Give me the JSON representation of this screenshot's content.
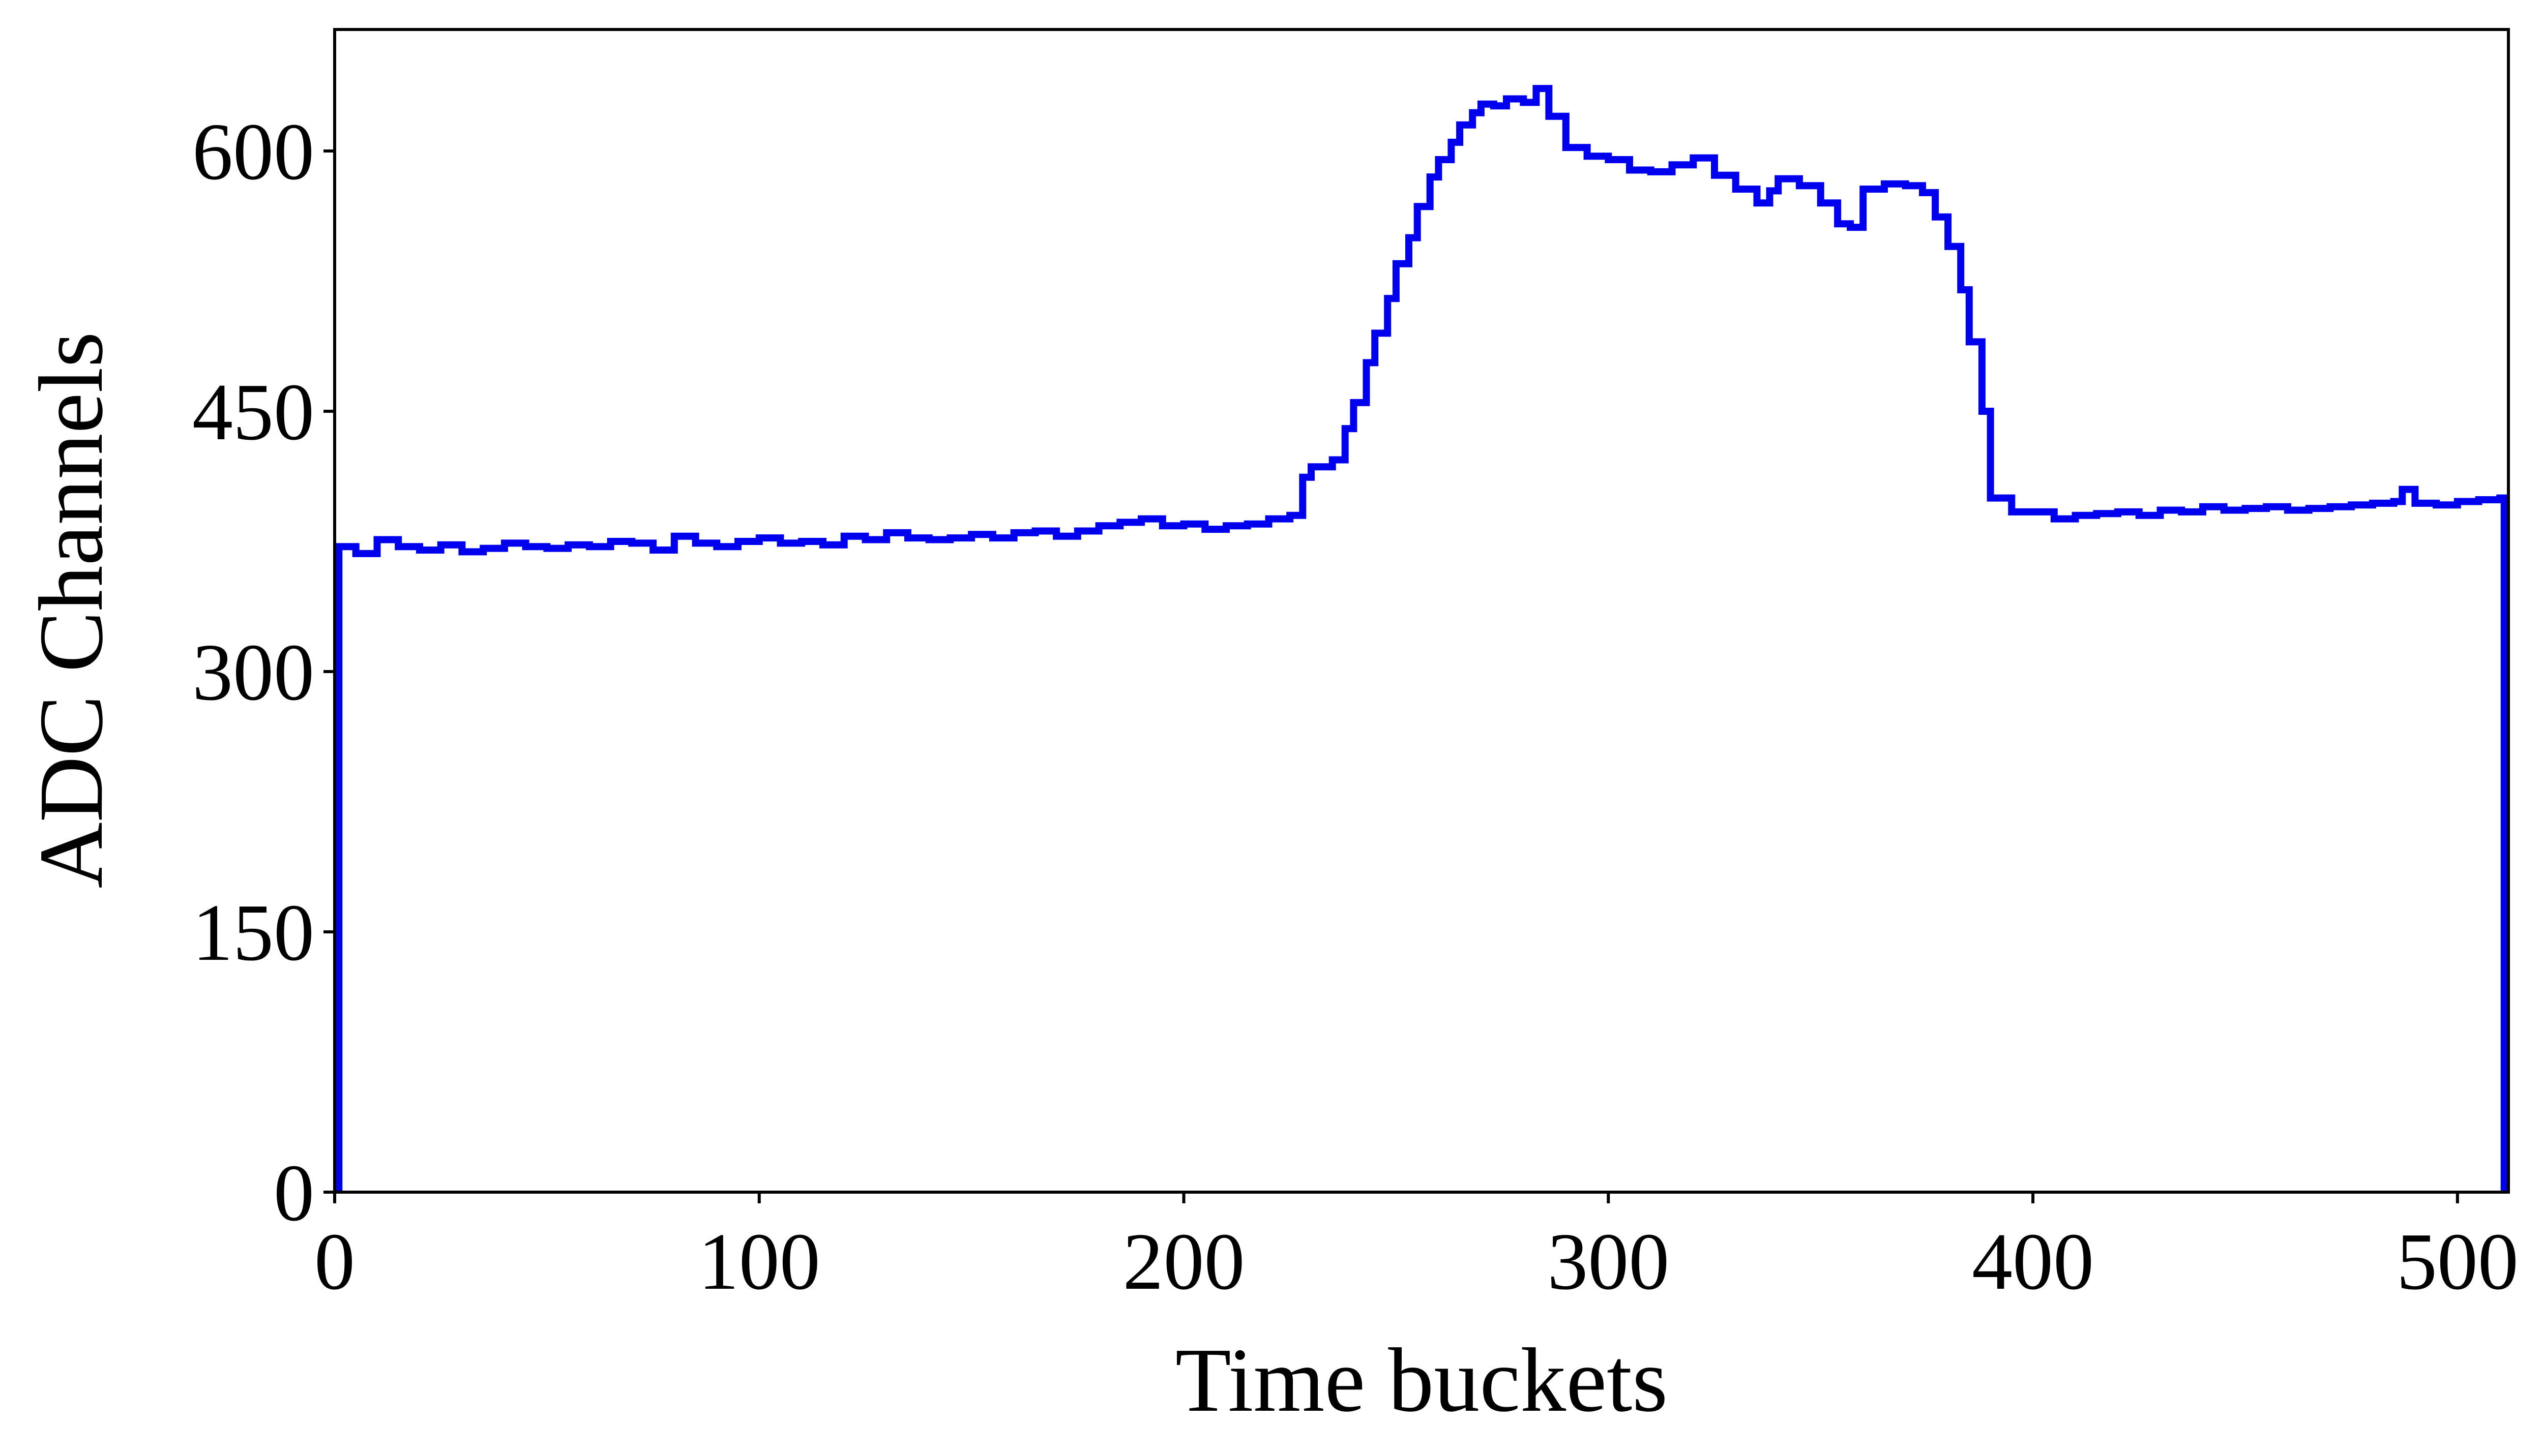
{
  "chart_data": {
    "type": "line",
    "step": true,
    "xlabel": "Time buckets",
    "ylabel": "ADC Channels",
    "xlim": [
      0,
      512
    ],
    "ylim": [
      0,
      670
    ],
    "xticks": [
      0,
      100,
      200,
      300,
      400,
      500
    ],
    "yticks": [
      0,
      150,
      300,
      450,
      600
    ],
    "grid": false,
    "line_color": "#0000ee",
    "series": [
      {
        "x": [
          0,
          1,
          5,
          10,
          15,
          20,
          25,
          30,
          35,
          40,
          45,
          50,
          55,
          60,
          65,
          70,
          75,
          80,
          85,
          90,
          95,
          100,
          105,
          110,
          115,
          120,
          125,
          130,
          135,
          140,
          145,
          150,
          155,
          160,
          165,
          170,
          175,
          180,
          185,
          190,
          195,
          200,
          205,
          210,
          215,
          220,
          225,
          228,
          230,
          235,
          238,
          240,
          243,
          245,
          248,
          250,
          253,
          255,
          258,
          260,
          263,
          265,
          268,
          270,
          273,
          276,
          280,
          283,
          286,
          290,
          295,
          300,
          305,
          310,
          315,
          320,
          325,
          330,
          335,
          338,
          340,
          345,
          350,
          354,
          357,
          360,
          365,
          370,
          374,
          377,
          380,
          383,
          385,
          388,
          390,
          395,
          400,
          405,
          410,
          415,
          420,
          425,
          430,
          435,
          440,
          445,
          450,
          455,
          460,
          465,
          470,
          475,
          480,
          485,
          487,
          490,
          495,
          500,
          505,
          510,
          511,
          512
        ],
        "y": [
          0,
          372,
          368,
          376,
          372,
          370,
          373,
          369,
          371,
          374,
          372,
          371,
          373,
          372,
          375,
          374,
          370,
          378,
          374,
          372,
          375,
          377,
          374,
          375,
          373,
          378,
          376,
          380,
          377,
          376,
          377,
          379,
          377,
          380,
          381,
          378,
          381,
          384,
          386,
          388,
          384,
          385,
          382,
          384,
          385,
          388,
          390,
          412,
          418,
          422,
          440,
          455,
          478,
          495,
          515,
          535,
          550,
          568,
          585,
          595,
          605,
          615,
          622,
          627,
          626,
          630,
          628,
          636,
          620,
          602,
          597,
          595,
          589,
          588,
          592,
          596,
          586,
          578,
          570,
          577,
          584,
          580,
          570,
          558,
          556,
          578,
          581,
          580,
          576,
          562,
          545,
          520,
          490,
          450,
          400,
          392,
          392,
          388,
          390,
          391,
          392,
          390,
          393,
          392,
          395,
          393,
          394,
          395,
          393,
          394,
          395,
          396,
          397,
          398,
          405,
          397,
          396,
          398,
          399,
          400,
          0,
          0
        ]
      }
    ]
  }
}
